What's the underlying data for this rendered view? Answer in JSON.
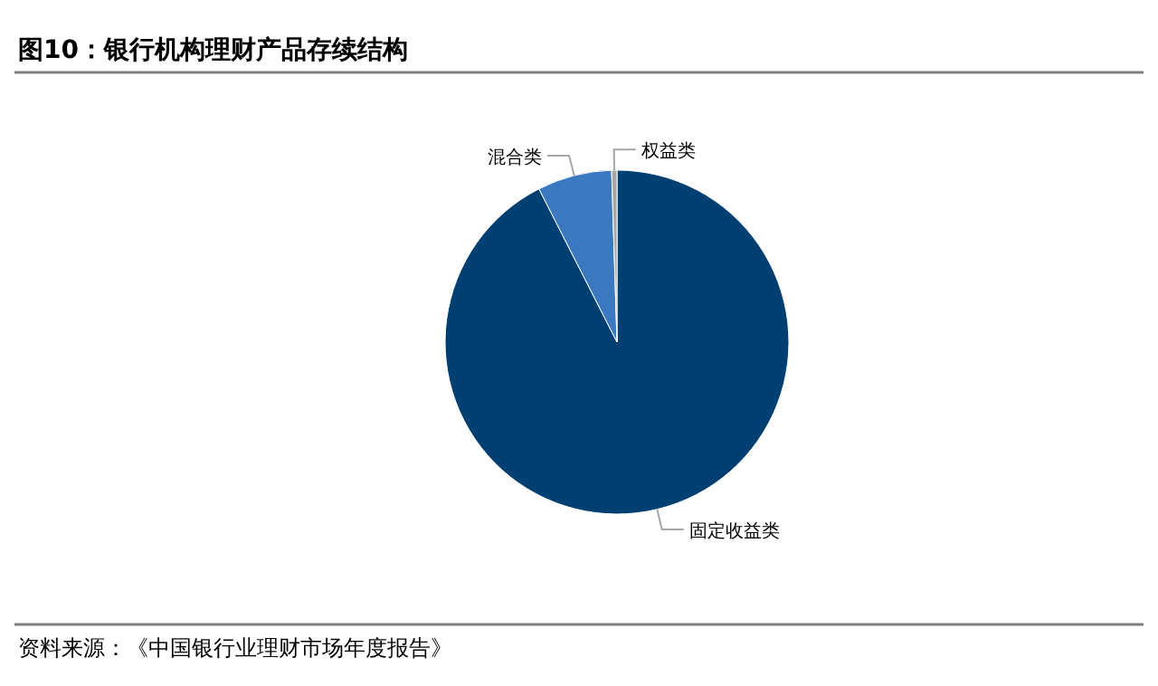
{
  "chart_data": {
    "type": "pie",
    "title": "图10：银行机构理财产品存续结构",
    "categories": [
      "固定收益类",
      "混合类",
      "权益类"
    ],
    "values": [
      92.5,
      7,
      0.5
    ],
    "colors": [
      "#003f72",
      "#3a78c0",
      "#a6a6a6"
    ],
    "annotations": [
      "资料来源：《中国银行业理财市场年度报告》"
    ]
  }
}
